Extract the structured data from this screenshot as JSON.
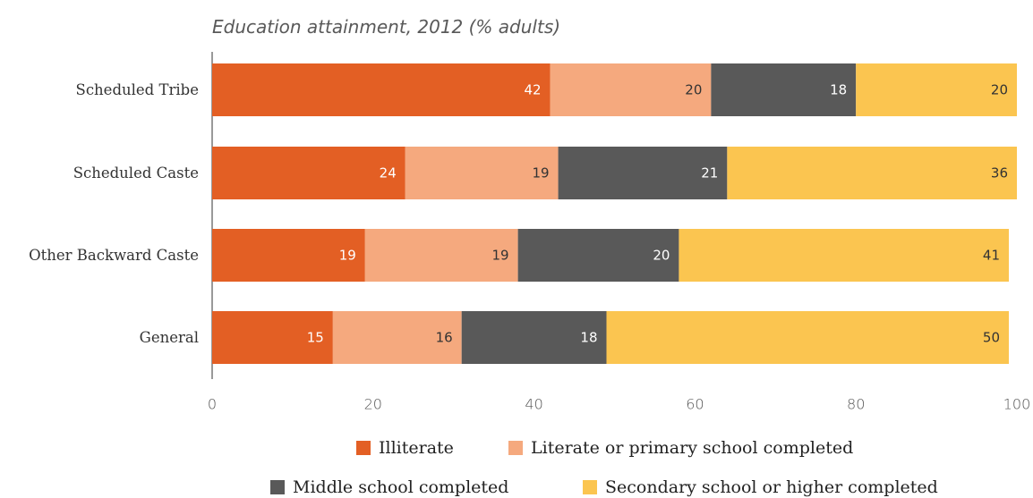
{
  "chart_data": {
    "type": "bar",
    "orientation": "horizontal",
    "stacked": true,
    "title": "Education attainment, 2012 (% adults)",
    "categories": [
      "Scheduled Tribe",
      "Scheduled Caste",
      "Other Backward Caste",
      "General"
    ],
    "series": [
      {
        "name": "Illiterate",
        "values": [
          42,
          24,
          19,
          15
        ],
        "color": "#E35F24",
        "label_color": "#ffffff"
      },
      {
        "name": "Literate or primary school completed",
        "values": [
          20,
          19,
          19,
          16
        ],
        "color": "#F5A97E",
        "label_color": "#333333"
      },
      {
        "name": "Middle school completed",
        "values": [
          18,
          21,
          20,
          18
        ],
        "color": "#595959",
        "label_color": "#ffffff"
      },
      {
        "name": "Secondary school or higher completed",
        "values": [
          20,
          36,
          41,
          50
        ],
        "color": "#FBC550",
        "label_color": "#333333"
      }
    ],
    "xlim": [
      0,
      100
    ],
    "xticks": [
      "0",
      "20",
      "40",
      "60",
      "80",
      "100"
    ],
    "grid": false,
    "legend_position": "bottom"
  }
}
